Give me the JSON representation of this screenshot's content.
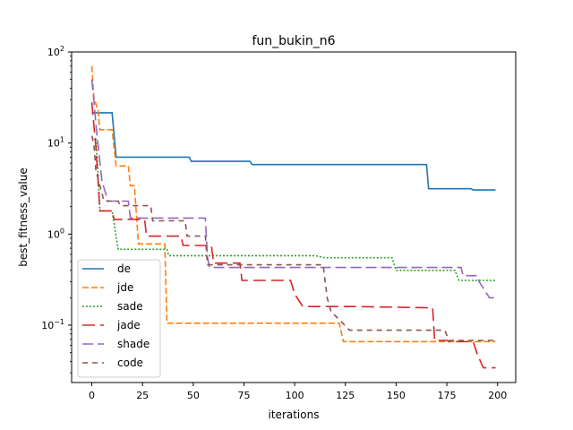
{
  "chart_data": {
    "type": "line",
    "title": "fun_bukin_n6",
    "xlabel": "iterations",
    "ylabel": "best_fitness_value",
    "xlim": [
      -9.95,
      208.95
    ],
    "ylim_log10": [
      -1.63,
      2.0
    ],
    "yscale": "log",
    "grid": false,
    "legend_position": "lower-left",
    "x_ticks": [
      0,
      25,
      50,
      75,
      100,
      125,
      150,
      175,
      200
    ],
    "y_ticks": [
      {
        "value": 0.1,
        "label_base": "10",
        "label_exp": "−1"
      },
      {
        "value": 1,
        "label_base": "10",
        "label_exp": "0"
      },
      {
        "value": 10,
        "label_base": "10",
        "label_exp": "1"
      },
      {
        "value": 100,
        "label_base": "10",
        "label_exp": "2"
      }
    ],
    "series": [
      {
        "name": "de",
        "color": "#1f77b4",
        "dash": "",
        "points": [
          [
            0,
            21.5
          ],
          [
            10,
            21.5
          ],
          [
            12,
            7.0
          ],
          [
            48,
            7.0
          ],
          [
            49,
            6.3
          ],
          [
            78,
            6.3
          ],
          [
            79,
            5.8
          ],
          [
            165,
            5.8
          ],
          [
            166,
            3.15
          ],
          [
            187,
            3.15
          ],
          [
            188,
            3.05
          ],
          [
            199,
            3.05
          ]
        ]
      },
      {
        "name": "jde",
        "color": "#ff7f0e",
        "dash": "7,3",
        "points": [
          [
            0,
            70
          ],
          [
            1,
            32
          ],
          [
            3,
            23
          ],
          [
            4,
            14
          ],
          [
            10,
            14
          ],
          [
            12,
            5.6
          ],
          [
            18,
            5.6
          ],
          [
            19,
            3.4
          ],
          [
            21,
            3.4
          ],
          [
            23,
            0.78
          ],
          [
            36,
            0.78
          ],
          [
            37,
            0.105
          ],
          [
            122,
            0.105
          ],
          [
            124,
            0.066
          ],
          [
            199,
            0.066
          ]
        ]
      },
      {
        "name": "sade",
        "color": "#2ca02c",
        "dash": "2,2",
        "points": [
          [
            0,
            11
          ],
          [
            2,
            11
          ],
          [
            3,
            5.0
          ],
          [
            4,
            1.8
          ],
          [
            10,
            1.8
          ],
          [
            13,
            0.68
          ],
          [
            37,
            0.68
          ],
          [
            38,
            0.58
          ],
          [
            110,
            0.58
          ],
          [
            115,
            0.55
          ],
          [
            148,
            0.55
          ],
          [
            150,
            0.4
          ],
          [
            179,
            0.4
          ],
          [
            181,
            0.31
          ],
          [
            199,
            0.31
          ]
        ]
      },
      {
        "name": "jade",
        "color": "#d62728",
        "dash": "14,6",
        "points": [
          [
            0,
            28
          ],
          [
            1,
            16
          ],
          [
            2,
            9
          ],
          [
            4,
            1.8
          ],
          [
            10,
            1.8
          ],
          [
            11,
            1.45
          ],
          [
            26,
            1.45
          ],
          [
            27,
            0.95
          ],
          [
            44,
            0.95
          ],
          [
            45,
            0.75
          ],
          [
            59,
            0.75
          ],
          [
            60,
            0.48
          ],
          [
            73,
            0.48
          ],
          [
            74,
            0.31
          ],
          [
            98,
            0.31
          ],
          [
            100,
            0.22
          ],
          [
            104,
            0.16
          ],
          [
            128,
            0.16
          ],
          [
            129,
            0.16
          ],
          [
            168,
            0.155
          ],
          [
            169,
            0.068
          ],
          [
            175,
            0.068
          ],
          [
            176,
            0.066
          ],
          [
            188,
            0.066
          ],
          [
            190,
            0.048
          ],
          [
            193,
            0.034
          ],
          [
            199,
            0.034
          ]
        ]
      },
      {
        "name": "shade",
        "color": "#9467bd",
        "dash": "12,5",
        "points": [
          [
            0,
            50
          ],
          [
            1,
            30
          ],
          [
            2,
            16
          ],
          [
            3,
            10
          ],
          [
            5,
            3.8
          ],
          [
            8,
            2.3
          ],
          [
            18,
            2.3
          ],
          [
            19,
            1.5
          ],
          [
            56,
            1.5
          ],
          [
            57,
            0.56
          ],
          [
            58,
            0.43
          ],
          [
            182,
            0.43
          ],
          [
            183,
            0.35
          ],
          [
            190,
            0.35
          ],
          [
            191,
            0.3
          ],
          [
            196,
            0.2
          ],
          [
            199,
            0.2
          ]
        ]
      },
      {
        "name": "code",
        "color": "#8c564b",
        "dash": "6,5",
        "points": [
          [
            0,
            12
          ],
          [
            1,
            10
          ],
          [
            2,
            5.0
          ],
          [
            5,
            2.8
          ],
          [
            6,
            2.3
          ],
          [
            13,
            2.3
          ],
          [
            14,
            2.05
          ],
          [
            29,
            2.05
          ],
          [
            30,
            1.4
          ],
          [
            46,
            1.4
          ],
          [
            47,
            0.95
          ],
          [
            56,
            0.95
          ],
          [
            57,
            0.46
          ],
          [
            114,
            0.46
          ],
          [
            116,
            0.2
          ],
          [
            118,
            0.14
          ],
          [
            122,
            0.115
          ],
          [
            127,
            0.088
          ],
          [
            174,
            0.088
          ],
          [
            176,
            0.068
          ],
          [
            199,
            0.068
          ]
        ]
      }
    ]
  }
}
